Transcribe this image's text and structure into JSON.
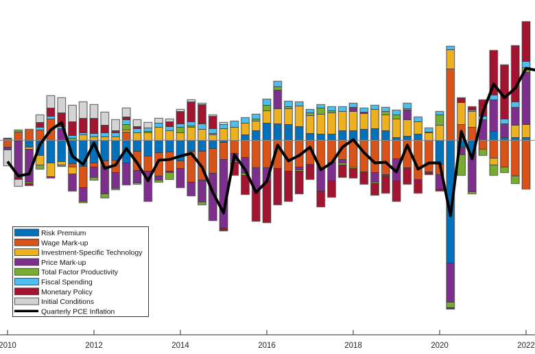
{
  "chart_data": {
    "type": "bar",
    "stacked": true,
    "title": "",
    "xlabel": "",
    "ylabel": "",
    "xlim": [
      2009.9,
      2022.2
    ],
    "ylim": [
      -28.4,
      20.4
    ],
    "y_axis_visible": false,
    "zero_line": true,
    "grid": false,
    "legend_position": "bottom-left",
    "x_ticks": [
      2010,
      2012,
      2014,
      2016,
      2018,
      2020,
      2022
    ],
    "x_tick_labels": [
      "2010",
      "2012",
      "2014",
      "2016",
      "2018",
      "2020",
      "2022"
    ],
    "x": [
      2010,
      2010.25,
      2010.5,
      2010.75,
      2011,
      2011.25,
      2011.5,
      2011.75,
      2012,
      2012.25,
      2012.5,
      2012.75,
      2013,
      2013.25,
      2013.5,
      2013.75,
      2014,
      2014.25,
      2014.5,
      2014.75,
      2015,
      2015.25,
      2015.5,
      2015.75,
      2016,
      2016.25,
      2016.5,
      2016.75,
      2017,
      2017.25,
      2017.5,
      2017.75,
      2018,
      2018.25,
      2018.5,
      2018.75,
      2019,
      2019.25,
      2019.5,
      2019.75,
      2020,
      2020.25,
      2020.5,
      2020.75,
      2021,
      2021.25,
      2021.5,
      2021.75,
      2022
    ],
    "series": [
      {
        "name": "Risk Premium",
        "color": "#0072BD",
        "values": [
          0,
          -0.1,
          -1.0,
          -2.2,
          -3.3,
          -3.1,
          -3.4,
          -3.8,
          -3.3,
          -3.0,
          -2.9,
          -3.3,
          -1.6,
          -2.3,
          -1.8,
          -1.7,
          -3.0,
          -1.6,
          -1.6,
          -1.2,
          -0.3,
          0,
          0.8,
          1.4,
          2.5,
          2.4,
          2.3,
          2.0,
          1.0,
          0.9,
          0.9,
          1.4,
          1.4,
          1.6,
          1.7,
          1.4,
          0.4,
          0.6,
          0.9,
          0,
          -3.5,
          -17.9,
          -1.0,
          -1.9,
          0,
          1.3,
          0.4,
          0.4,
          0.4
        ]
      },
      {
        "name": "Wage Mark-up",
        "color": "#D95319",
        "values": [
          -1.0,
          1.2,
          1.6,
          1.5,
          3.1,
          0,
          -0.5,
          -3.1,
          -0.6,
          -0.8,
          -1.8,
          1.2,
          -2.8,
          -2.2,
          -3.4,
          -2.8,
          -1.1,
          -4.5,
          -4.2,
          -3.6,
          -2.5,
          -1.9,
          -2.5,
          -4.0,
          -4.0,
          -4.1,
          -4.5,
          -3.9,
          -3.5,
          -4.0,
          -3.2,
          -2.8,
          -3.9,
          -4.6,
          -4.7,
          -5.0,
          -2.7,
          -4.0,
          -5.7,
          -4.6,
          -1.5,
          10.4,
          2.3,
          1.9,
          -1.3,
          -2.6,
          -3.9,
          -5.2,
          -7.1
        ]
      },
      {
        "name": "Investment-Specific Technology",
        "color": "#EDB120",
        "values": [
          0,
          0,
          -0.3,
          -1.4,
          -2.0,
          -0.5,
          -1.0,
          0.8,
          0.5,
          0.5,
          0.5,
          0.3,
          1.1,
          1.1,
          1.9,
          1.4,
          1.1,
          1.9,
          1.6,
          0.8,
          1.7,
          1.9,
          1.7,
          1.4,
          1.8,
          2.2,
          2.3,
          3.0,
          2.6,
          2.9,
          3.1,
          2.8,
          2.8,
          2.3,
          2.8,
          2.3,
          2.7,
          2.4,
          1.8,
          1.1,
          2.2,
          2.8,
          3.2,
          2.3,
          0,
          -1.0,
          0,
          1.8,
          1.9
        ]
      },
      {
        "name": "Price Mark-up",
        "color": "#7E2F8E",
        "values": [
          -0.4,
          -5.3,
          -4.8,
          0,
          -0.2,
          1.7,
          -2.5,
          -2.0,
          -1.5,
          -4.0,
          -2.3,
          -3.2,
          -1.8,
          -4.4,
          -0.6,
          -0.2,
          -2.8,
          -2.0,
          -3.2,
          -6.9,
          -10.0,
          -1.1,
          -2.3,
          -3.5,
          -1.9,
          2.7,
          0,
          -0.4,
          -0.2,
          -3.4,
          -2.7,
          -0.5,
          0.6,
          0.2,
          -1.4,
          -0.2,
          -3.2,
          1.4,
          -0.2,
          0,
          -2.1,
          -5.7,
          -1.1,
          -5.6,
          3.0,
          4.6,
          2.0,
          2.6,
          7.6
        ]
      },
      {
        "name": "Total Factor Productivity",
        "color": "#77AC30",
        "values": [
          0.2,
          0.3,
          -0.2,
          -0.6,
          0,
          -0.2,
          0.3,
          -0.2,
          -0.4,
          -0.6,
          -0.2,
          0.8,
          -0.2,
          0.2,
          -0.3,
          -1.0,
          0.8,
          0.2,
          -0.4,
          0.2,
          0,
          -0.2,
          -0.3,
          0.3,
          0.8,
          0.5,
          0.3,
          -0.2,
          0.4,
          0.9,
          0.3,
          -0.3,
          -0.2,
          -0.1,
          -0.2,
          0.5,
          0.6,
          0.2,
          0,
          0.1,
          1.5,
          -0.8,
          -3.0,
          -0.3,
          -0.9,
          -1.5,
          -0.8,
          -1.1,
          0.7
        ]
      },
      {
        "name": "Fiscal Spending",
        "color": "#4DBEEE",
        "values": [
          0,
          0,
          0,
          0.4,
          0.4,
          0.3,
          0.4,
          0.3,
          0.5,
          0.6,
          0.6,
          0.7,
          0.6,
          0.5,
          0.6,
          0.6,
          0.5,
          0.6,
          0.8,
          0.7,
          0.6,
          0.9,
          0.8,
          0.7,
          0.9,
          0.8,
          0.8,
          0.6,
          0.5,
          0.5,
          0.6,
          0.7,
          0.6,
          0.6,
          0.6,
          0.6,
          0.7,
          0.8,
          0.7,
          0.6,
          0.5,
          0.5,
          0,
          0.2,
          0.5,
          0.7,
          0.7,
          0.8,
          0.9
        ]
      },
      {
        "name": "Monetary Policy",
        "color": "#A2142F",
        "values": [
          0.1,
          -0.3,
          -0.3,
          0.7,
          1.2,
          2.0,
          2.0,
          2.1,
          2.2,
          1.1,
          0.3,
          0.4,
          0.3,
          0,
          0,
          0.7,
          1.8,
          2.9,
          2.8,
          1.8,
          -0.4,
          -1.9,
          -2.8,
          -4.3,
          -6.1,
          -5.3,
          -4.4,
          -3.3,
          -2.0,
          -2.3,
          -2.4,
          -1.8,
          -1.4,
          -1.7,
          -1.7,
          -2.5,
          -3.0,
          -2.4,
          -1.8,
          -0.4,
          -0.3,
          -0.2,
          0.7,
          0.5,
          2.4,
          6.5,
          7.9,
          8.2,
          5.8
        ]
      },
      {
        "name": "Initial Conditions",
        "color": "#D3D3D3",
        "values": [
          -2.3,
          -1.0,
          0,
          1.1,
          1.8,
          2.2,
          2.4,
          2.4,
          2.0,
          1.9,
          1.6,
          1.3,
          1.0,
          0.8,
          0.7,
          0.4,
          0.3,
          0.3,
          0.2,
          0.2,
          0.3,
          0,
          0,
          0,
          0,
          0,
          0,
          0,
          0,
          0,
          0,
          0,
          0,
          0,
          0,
          0,
          0,
          0,
          0,
          0,
          0,
          0,
          0,
          0,
          0,
          0,
          0,
          0,
          0
        ]
      }
    ],
    "line": {
      "name": "Quarterly PCE Inflation",
      "color": "#000000",
      "type": "line",
      "values": [
        -3.1,
        -5.2,
        -4.9,
        -0.6,
        1.5,
        2.6,
        -2.3,
        -3.5,
        -0.4,
        -4.1,
        -3.6,
        -1.2,
        -3.3,
        -5.9,
        -2.9,
        -2.8,
        -2.3,
        -1.9,
        -3.9,
        -7.6,
        -10.6,
        -2.1,
        -4.3,
        -7.6,
        -6.0,
        -0.7,
        -3.0,
        -2.2,
        -1.0,
        -4.3,
        -3.3,
        -1.0,
        0.1,
        -1.8,
        -3.3,
        -3.2,
        -4.6,
        -0.7,
        -4.2,
        -3.3,
        -3.3,
        -11.0,
        1.3,
        -2.7,
        4.1,
        8.2,
        6.2,
        7.6,
        10.5
      ]
    }
  }
}
